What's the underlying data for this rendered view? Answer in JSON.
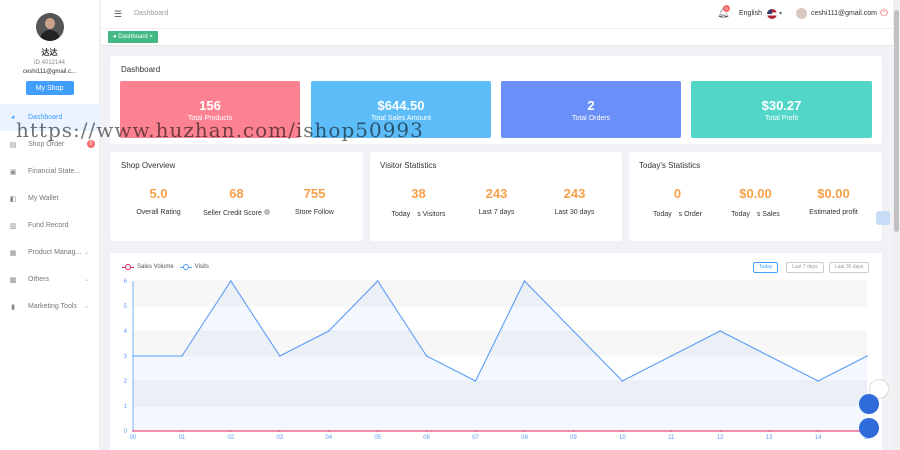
{
  "profile": {
    "name": "达达",
    "id": "ID 4012144",
    "email": "ceshi111@gmail.c...",
    "shop_button": "My Shop"
  },
  "sidebar": {
    "items": [
      {
        "label": "Dashboard",
        "icon": "dashboard-icon",
        "active": true
      },
      {
        "label": "Shop Order",
        "icon": "order-icon",
        "badge": "0"
      },
      {
        "label": "Financial State...",
        "icon": "finance-icon"
      },
      {
        "label": "My Wallet",
        "icon": "wallet-icon"
      },
      {
        "label": "Fund Record",
        "icon": "record-icon"
      },
      {
        "label": "Product Manag...",
        "icon": "product-icon",
        "expandable": true
      },
      {
        "label": "Others",
        "icon": "grid-icon",
        "expandable": true
      },
      {
        "label": "Marketing Tools",
        "icon": "chart-icon",
        "expandable": true
      }
    ]
  },
  "header": {
    "breadcrumb": "Dashboard",
    "notification_count": "0",
    "language": "English",
    "user_email": "ceshi111@gmail.com"
  },
  "tags": {
    "active_tag": "Dashboard"
  },
  "dashboard": {
    "title": "Dashboard",
    "stats": [
      {
        "value": "156",
        "label": "Total Products",
        "color": "#fd8291"
      },
      {
        "value": "$644.50",
        "label": "Total Sales Amount",
        "color": "#5cbdf9"
      },
      {
        "value": "2",
        "label": "Total Orders",
        "color": "#6a8ff8"
      },
      {
        "value": "$30.27",
        "label": "Total Profit",
        "color": "#51d6c8"
      }
    ]
  },
  "shop_overview": {
    "title": "Shop Overview",
    "items": [
      {
        "value": "5.0",
        "label": "Overall Rating"
      },
      {
        "value": "68",
        "label": "Seller Credit Score"
      },
      {
        "value": "755",
        "label": "Store Follow"
      }
    ]
  },
  "visitor_statistics": {
    "title": "Visitor Statistics",
    "items": [
      {
        "value": "38",
        "label": "Today　s Visitors"
      },
      {
        "value": "243",
        "label": "Last 7 days"
      },
      {
        "value": "243",
        "label": "Last 30 days"
      }
    ]
  },
  "today_statistics": {
    "title": "Today's Statistics",
    "items": [
      {
        "value": "0",
        "label": "Today　s Order"
      },
      {
        "value": "$0.00",
        "label": "Today　s Sales"
      },
      {
        "value": "$0.00",
        "label": "Estimated profit"
      }
    ]
  },
  "range_buttons": {
    "today": "Today",
    "last7": "Last 7 days",
    "last30": "Last 30 days"
  },
  "watermark": "https://www.huzhan.com/ishop50993",
  "chart_data": {
    "type": "line",
    "x": [
      "00",
      "01",
      "02",
      "03",
      "04",
      "05",
      "06",
      "07",
      "08",
      "09",
      "10",
      "11",
      "12",
      "13",
      "14",
      "15"
    ],
    "series": [
      {
        "name": "Sales Volume",
        "color": "#e0245e",
        "values": [
          0,
          0,
          0,
          0,
          0,
          0,
          0,
          0,
          0,
          0,
          0,
          0,
          0,
          0,
          0,
          0
        ]
      },
      {
        "name": "Visits",
        "color": "#5a9cf8",
        "values": [
          3,
          3,
          6,
          3,
          4,
          6,
          3,
          2,
          6,
          4,
          2,
          3,
          4,
          3,
          2,
          3
        ]
      }
    ],
    "ylim": [
      0,
      6
    ],
    "yticks": [
      "0",
      "1",
      "2",
      "3",
      "4",
      "5",
      "6"
    ],
    "legend": "top-left",
    "grid": true
  }
}
